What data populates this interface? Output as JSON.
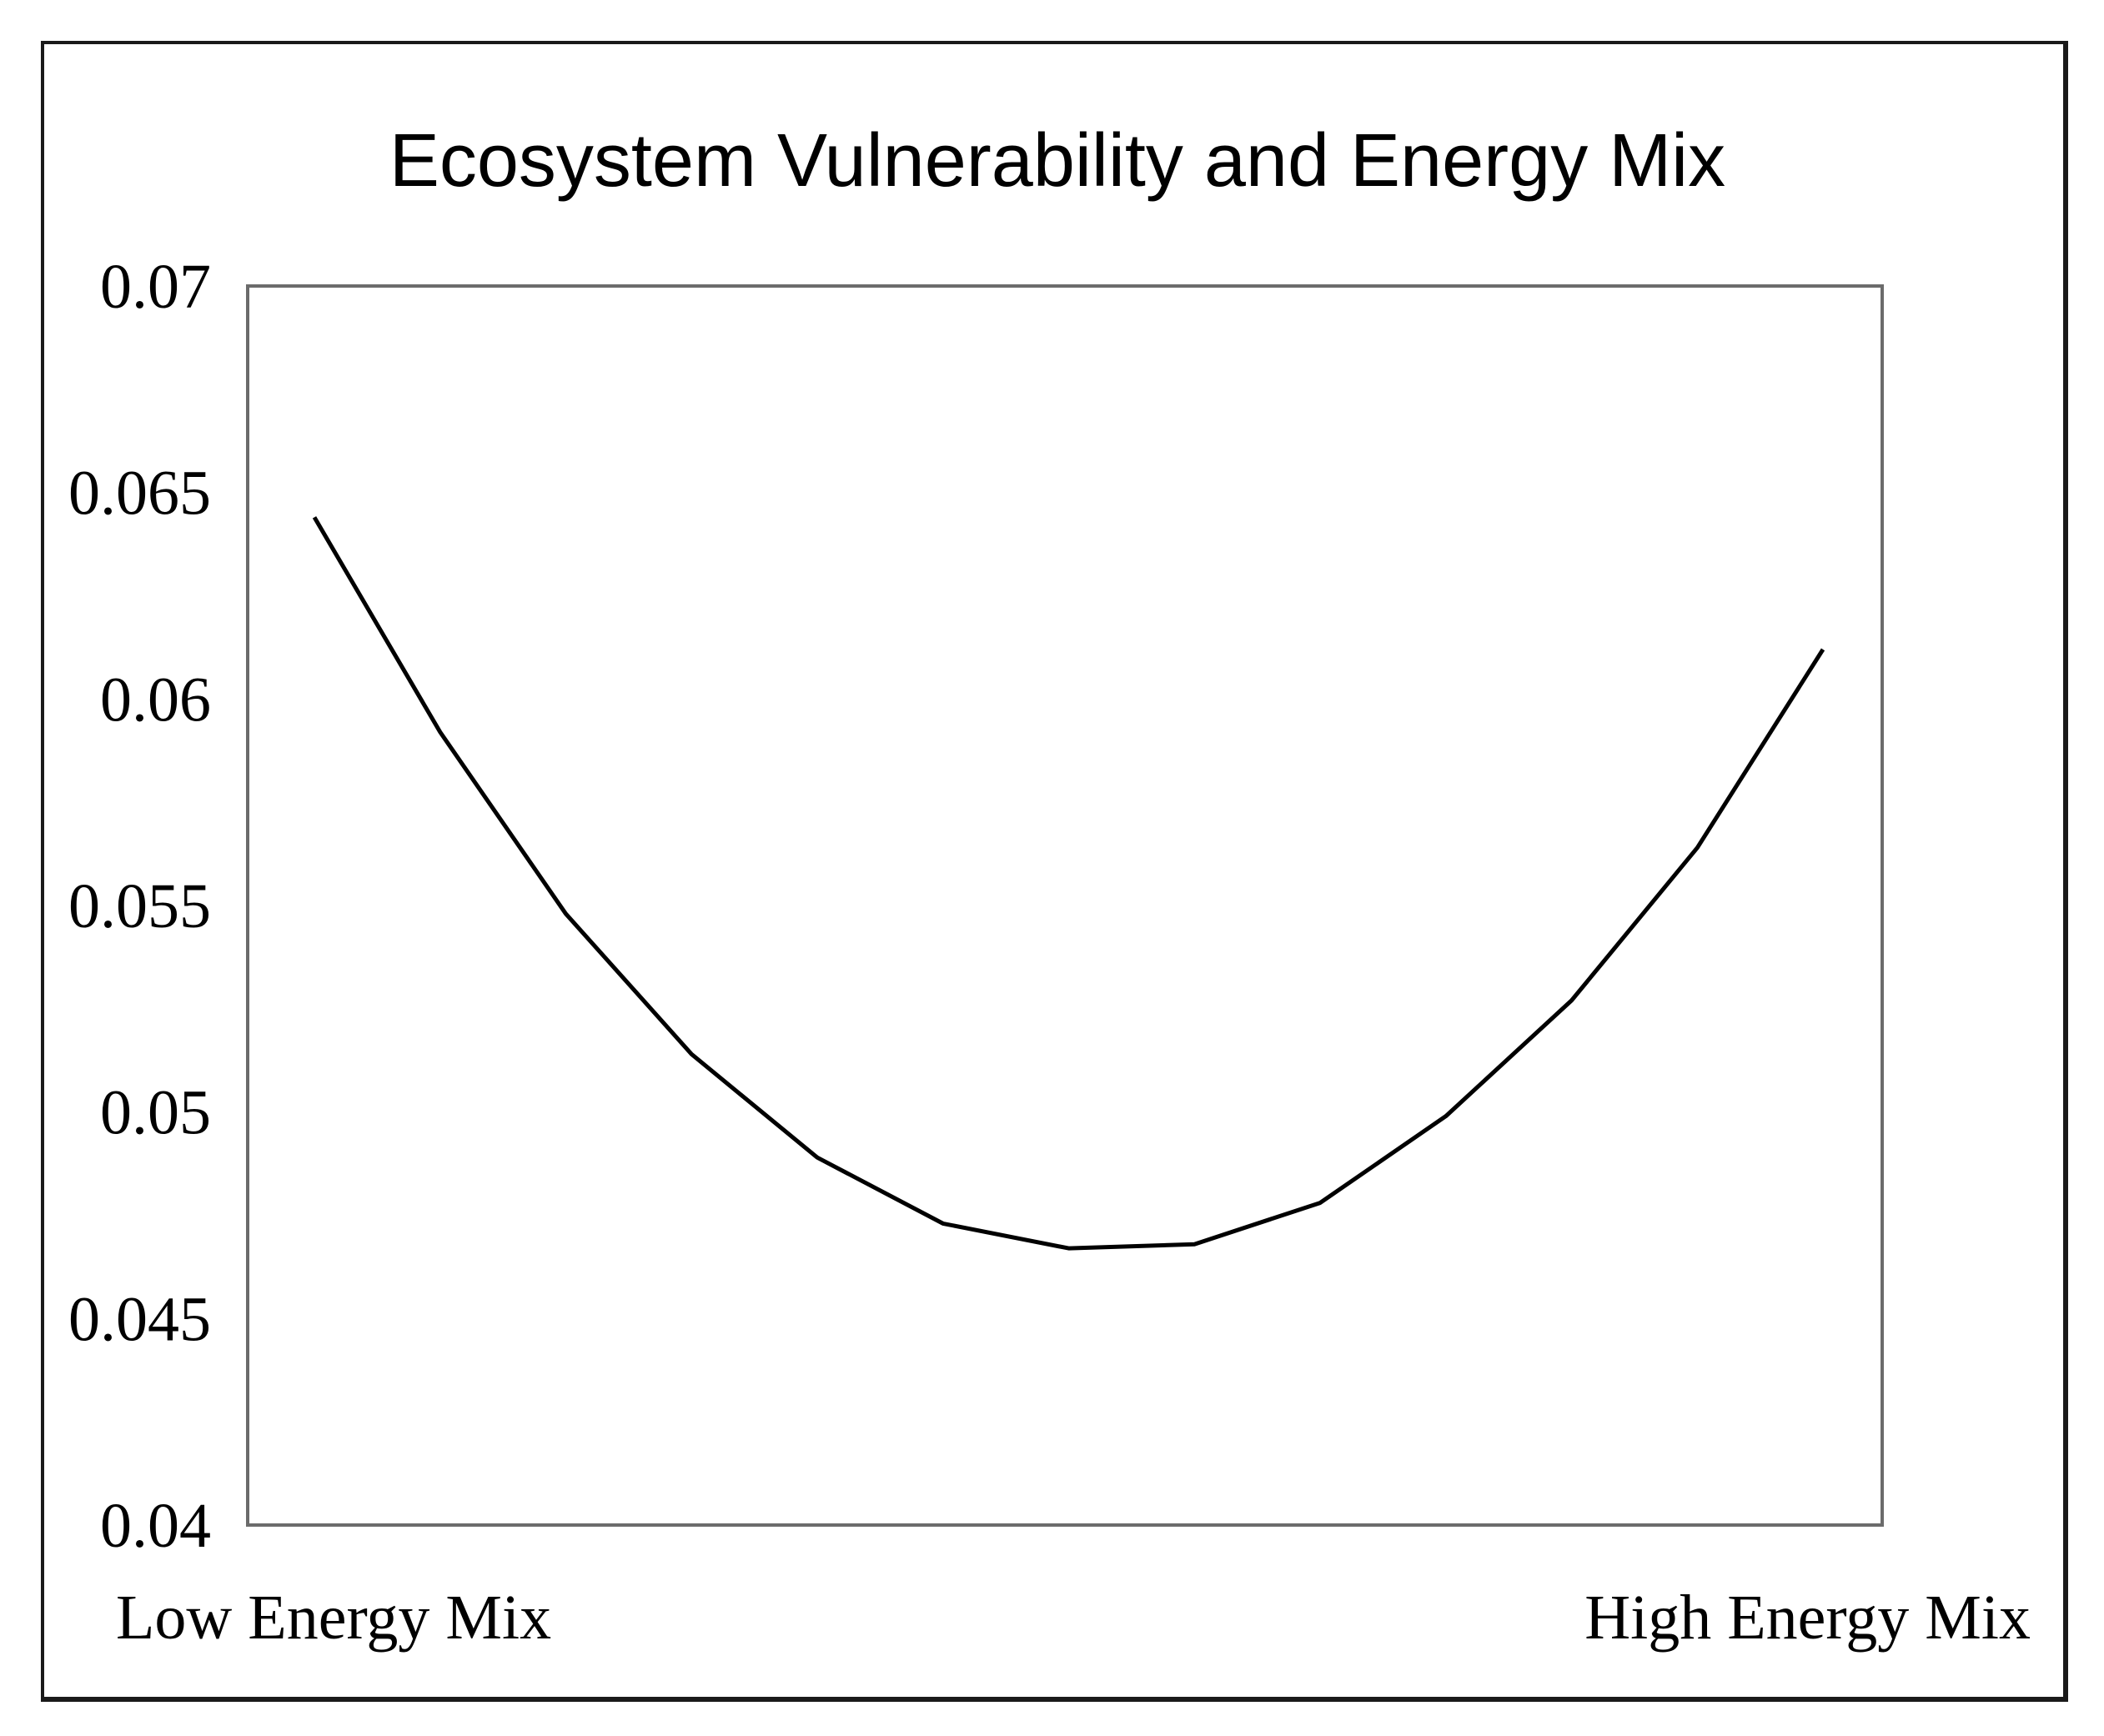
{
  "chart_data": {
    "type": "line",
    "title": "Ecosystem Vulnerability and Energy Mix",
    "xlabel": "",
    "ylabel": "",
    "x_tick_labels": [
      "Low Energy Mix",
      "High Energy Mix"
    ],
    "y_tick_labels": [
      "0.07",
      "0.065",
      "0.06",
      "0.055",
      "0.05",
      "0.045",
      "0.04"
    ],
    "ylim": [
      0.04,
      0.07
    ],
    "grid": false,
    "legend": "none",
    "series": [
      {
        "name": "Ecosystem Vulnerability",
        "color": "#000000",
        "x": [
          1,
          2,
          3,
          4,
          5,
          6,
          7,
          8,
          9,
          10,
          11,
          12,
          13
        ],
        "values": [
          0.0644,
          0.0592,
          0.0548,
          0.0514,
          0.0489,
          0.0473,
          0.0467,
          0.0468,
          0.0478,
          0.0499,
          0.0527,
          0.0564,
          0.0612
        ]
      }
    ]
  }
}
